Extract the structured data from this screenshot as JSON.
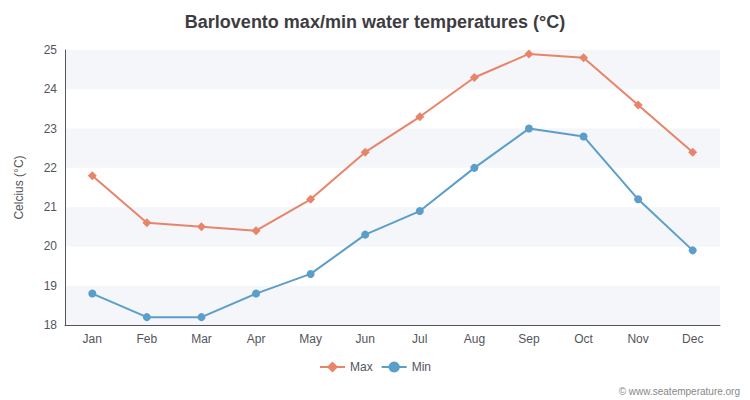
{
  "chart_data": {
    "type": "line",
    "title": "Barlovento max/min water temperatures (°C)",
    "ylabel": "Celcius (°C)",
    "categories": [
      "Jan",
      "Feb",
      "Mar",
      "Apr",
      "May",
      "Jun",
      "Jul",
      "Aug",
      "Sep",
      "Oct",
      "Nov",
      "Dec"
    ],
    "series": [
      {
        "name": "Max",
        "color": "#e8846a",
        "marker": "diamond",
        "values": [
          21.8,
          20.6,
          20.5,
          20.4,
          21.2,
          22.4,
          23.3,
          24.3,
          24.9,
          24.8,
          23.6,
          22.4
        ]
      },
      {
        "name": "Min",
        "color": "#5b9ec9",
        "marker": "circle",
        "values": [
          18.8,
          18.2,
          18.2,
          18.8,
          19.3,
          20.3,
          20.9,
          22.0,
          23.0,
          22.8,
          21.2,
          19.9
        ]
      }
    ],
    "ylim": [
      18.0,
      25.0
    ],
    "yticks": [
      18,
      19,
      20,
      21,
      22,
      23,
      24,
      25
    ],
    "grid": true,
    "legend": "bottom",
    "annotation": "© www.seatemperature.org"
  }
}
